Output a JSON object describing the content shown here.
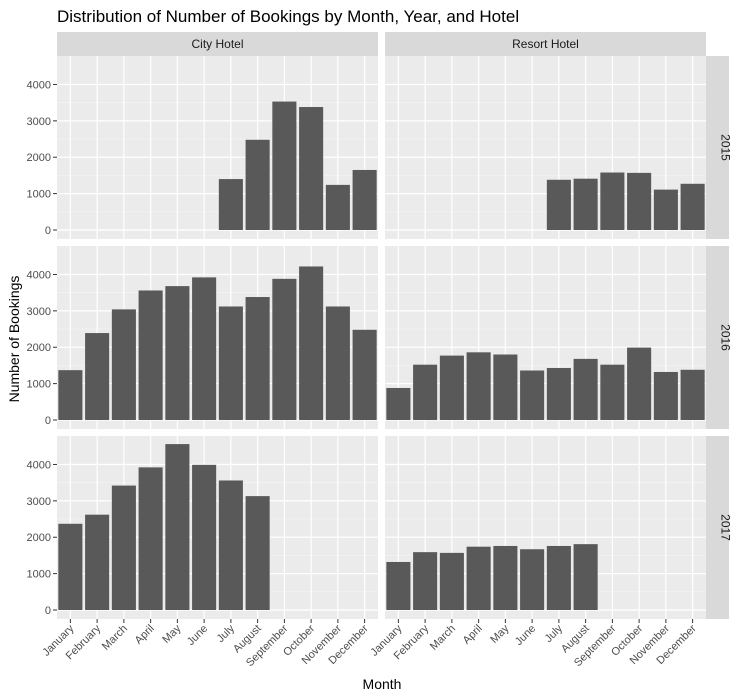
{
  "chart_data": {
    "type": "bar",
    "title": "Distribution of Number of Bookings by Month, Year, and Hotel",
    "xlabel": "Month",
    "ylabel": "Number of Bookings",
    "ylim": [
      0,
      4700
    ],
    "yticks": [
      0,
      1000,
      2000,
      3000,
      4000
    ],
    "grid": true,
    "facet_columns": [
      "City Hotel",
      "Resort Hotel"
    ],
    "facet_rows": [
      "2015",
      "2016",
      "2017"
    ],
    "categories": [
      "January",
      "February",
      "March",
      "April",
      "May",
      "June",
      "July",
      "August",
      "September",
      "October",
      "November",
      "December"
    ],
    "panels": [
      {
        "hotel": "City Hotel",
        "year": "2015",
        "values": [
          null,
          null,
          null,
          null,
          null,
          null,
          1400,
          2480,
          3530,
          3380,
          1240,
          1650
        ]
      },
      {
        "hotel": "Resort Hotel",
        "year": "2015",
        "values": [
          null,
          null,
          null,
          null,
          null,
          null,
          1380,
          1410,
          1580,
          1570,
          1110,
          1270
        ]
      },
      {
        "hotel": "City Hotel",
        "year": "2016",
        "values": [
          1370,
          2390,
          3040,
          3560,
          3680,
          3920,
          3120,
          3380,
          3880,
          4220,
          3120,
          2480
        ]
      },
      {
        "hotel": "Resort Hotel",
        "year": "2016",
        "values": [
          880,
          1520,
          1770,
          1860,
          1800,
          1360,
          1430,
          1680,
          1520,
          1990,
          1320,
          1380
        ]
      },
      {
        "hotel": "City Hotel",
        "year": "2017",
        "values": [
          2370,
          2620,
          3420,
          3920,
          4560,
          3990,
          3560,
          3130,
          null,
          null,
          null,
          null
        ]
      },
      {
        "hotel": "Resort Hotel",
        "year": "2017",
        "values": [
          1320,
          1590,
          1570,
          1740,
          1760,
          1670,
          1760,
          1810,
          null,
          null,
          null,
          null
        ]
      }
    ],
    "bar_color": "#595959",
    "panel_bg": "#ebebeb",
    "strip_bg": "#d9d9d9"
  }
}
